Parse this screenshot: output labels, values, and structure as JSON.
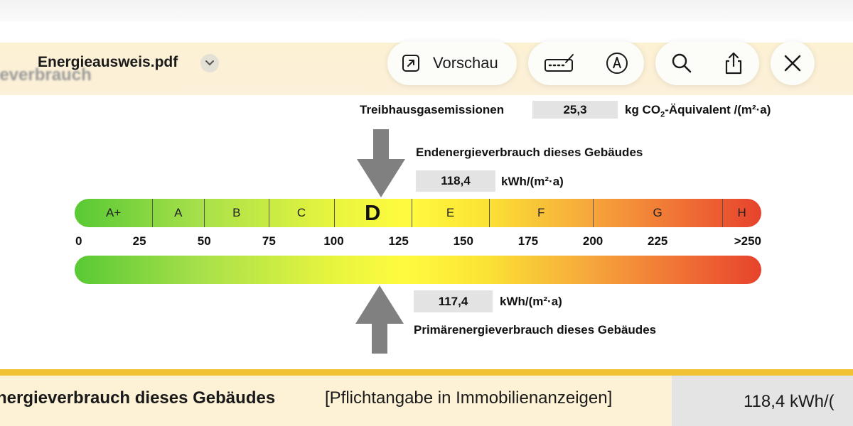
{
  "toolbar": {
    "filename": "Energieausweis.pdf",
    "preview_label": "Vorschau",
    "icons": [
      "filename-chevron-icon",
      "preview-arrow-icon",
      "markup-icon",
      "pen-circle-icon",
      "search-icon",
      "share-icon",
      "close-icon"
    ]
  },
  "document": {
    "blurred_heading": "gieverbrauch",
    "emissions": {
      "label": "Treibhausgasemissionen",
      "value": "25,3",
      "unit_prefix": "kg CO",
      "unit_sub": "2",
      "unit_suffix": "-Äquivalent /(m²·a)"
    },
    "final_energy": {
      "label": "Endenergieverbrauch dieses Gebäudes",
      "value": "118,4",
      "unit": "kWh/(m²·a)",
      "numeric": 118.4
    },
    "primary_energy": {
      "label": "Primärenergieverbrauch dieses Gebäudes",
      "value": "117,4",
      "unit": "kWh/(m²·a)",
      "numeric": 117.4
    },
    "scale": {
      "classes": [
        {
          "label": "A+",
          "from": 0,
          "to": 30
        },
        {
          "label": "A",
          "from": 30,
          "to": 50
        },
        {
          "label": "B",
          "from": 50,
          "to": 75
        },
        {
          "label": "C",
          "from": 75,
          "to": 100
        },
        {
          "label": "D",
          "from": 100,
          "to": 130,
          "active": true
        },
        {
          "label": "E",
          "from": 130,
          "to": 160
        },
        {
          "label": "F",
          "from": 160,
          "to": 200
        },
        {
          "label": "G",
          "from": 200,
          "to": 250
        },
        {
          "label": "H",
          "from": 250,
          "to": 265
        }
      ],
      "ticks": [
        {
          "label": "0",
          "value": 0
        },
        {
          "label": "25",
          "value": 25
        },
        {
          "label": "50",
          "value": 50
        },
        {
          "label": "75",
          "value": 75
        },
        {
          "label": "100",
          "value": 100
        },
        {
          "label": "125",
          "value": 125
        },
        {
          "label": "150",
          "value": 150
        },
        {
          "label": "175",
          "value": 175
        },
        {
          "label": "200",
          "value": 200
        },
        {
          "label": "225",
          "value": 225
        },
        {
          "label": ">250",
          "value": 265
        }
      ],
      "max": 265,
      "colors": [
        "#58c934",
        "#a6e04a",
        "#e8f53e",
        "#fffb3f",
        "#fbe234",
        "#f6a73c",
        "#ef6a34",
        "#e6432c"
      ]
    },
    "footer": {
      "label": "nergieverbrauch dieses Gebäudes",
      "note": "[Pflichtangabe in Immobilienanzeigen]",
      "value": "118,4 kWh/("
    }
  }
}
